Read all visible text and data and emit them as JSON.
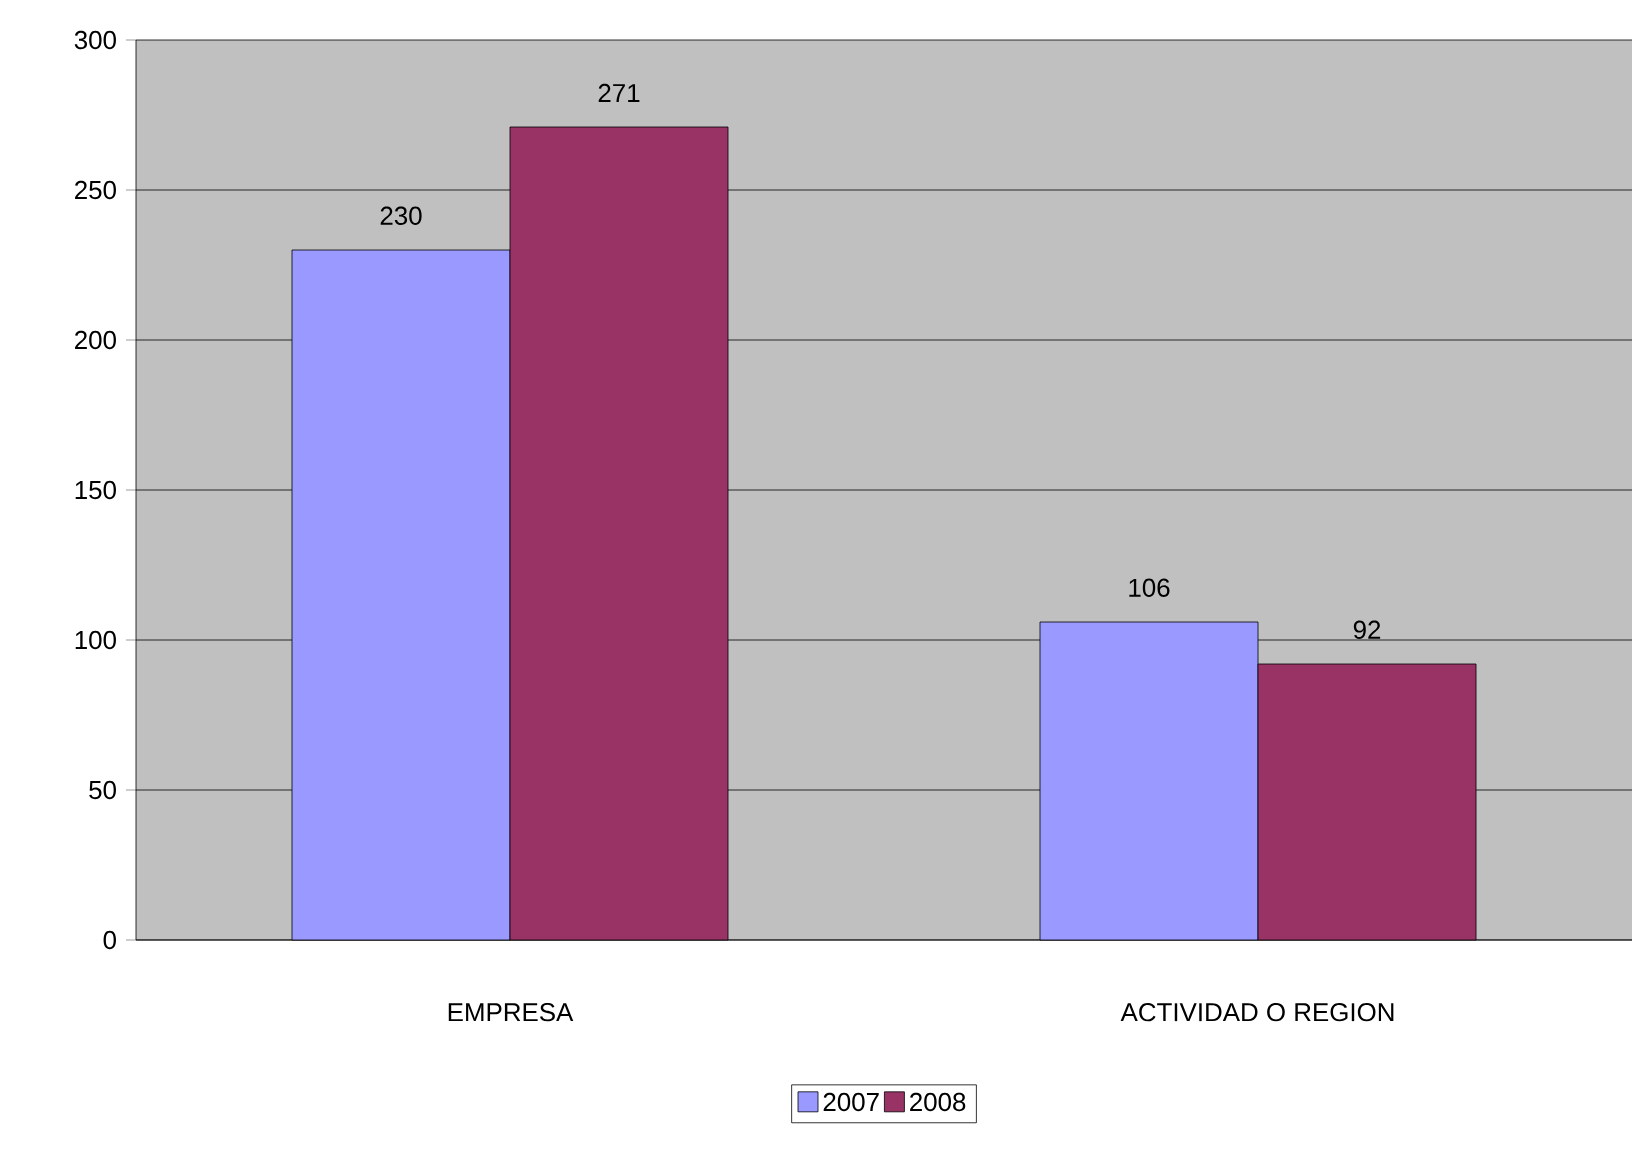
{
  "chart_data": {
    "type": "bar",
    "categories": [
      "EMPRESA",
      "ACTIVIDAD O REGION"
    ],
    "series": [
      {
        "name": "2007",
        "color": "#9999ff",
        "values": [
          230,
          106
        ]
      },
      {
        "name": "2008",
        "color": "#993366",
        "values": [
          271,
          92
        ]
      }
    ],
    "ylim": [
      0,
      300
    ],
    "yticks": [
      0,
      50,
      100,
      150,
      200,
      250,
      300
    ],
    "grid": "y",
    "legend": "bottom",
    "data_labels": true
  }
}
